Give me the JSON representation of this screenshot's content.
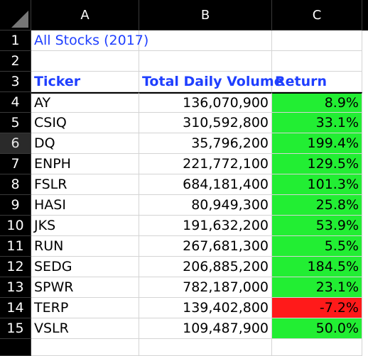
{
  "columns": [
    "A",
    "B",
    "C"
  ],
  "row_numbers": [
    "1",
    "2",
    "3",
    "4",
    "5",
    "6",
    "7",
    "8",
    "9",
    "10",
    "11",
    "12",
    "13",
    "14",
    "15"
  ],
  "title": "All Stocks (2017)",
  "headers": {
    "ticker": "Ticker",
    "volume": "Total Daily Volume",
    "return": "Return"
  },
  "rows": [
    {
      "ticker": "AY",
      "volume": "136,070,900",
      "return": "8.9%",
      "status": "positive"
    },
    {
      "ticker": "CSIQ",
      "volume": "310,592,800",
      "return": "33.1%",
      "status": "positive"
    },
    {
      "ticker": "DQ",
      "volume": "35,796,200",
      "return": "199.4%",
      "status": "positive"
    },
    {
      "ticker": "ENPH",
      "volume": "221,772,100",
      "return": "129.5%",
      "status": "positive"
    },
    {
      "ticker": "FSLR",
      "volume": "684,181,400",
      "return": "101.3%",
      "status": "positive"
    },
    {
      "ticker": "HASI",
      "volume": "80,949,300",
      "return": "25.8%",
      "status": "positive"
    },
    {
      "ticker": "JKS",
      "volume": "191,632,200",
      "return": "53.9%",
      "status": "positive"
    },
    {
      "ticker": "RUN",
      "volume": "267,681,300",
      "return": "5.5%",
      "status": "positive"
    },
    {
      "ticker": "SEDG",
      "volume": "206,885,200",
      "return": "184.5%",
      "status": "positive"
    },
    {
      "ticker": "SPWR",
      "volume": "782,187,000",
      "return": "23.1%",
      "status": "positive"
    },
    {
      "ticker": "TERP",
      "volume": "139,402,800",
      "return": "-7.2%",
      "status": "negative"
    },
    {
      "ticker": "VSLR",
      "volume": "109,487,900",
      "return": "50.0%",
      "status": "positive"
    }
  ],
  "colors": {
    "positive": "#22ee33",
    "negative": "#ff1a1a",
    "header_text": "#1f3fff"
  },
  "selected_row": "6"
}
